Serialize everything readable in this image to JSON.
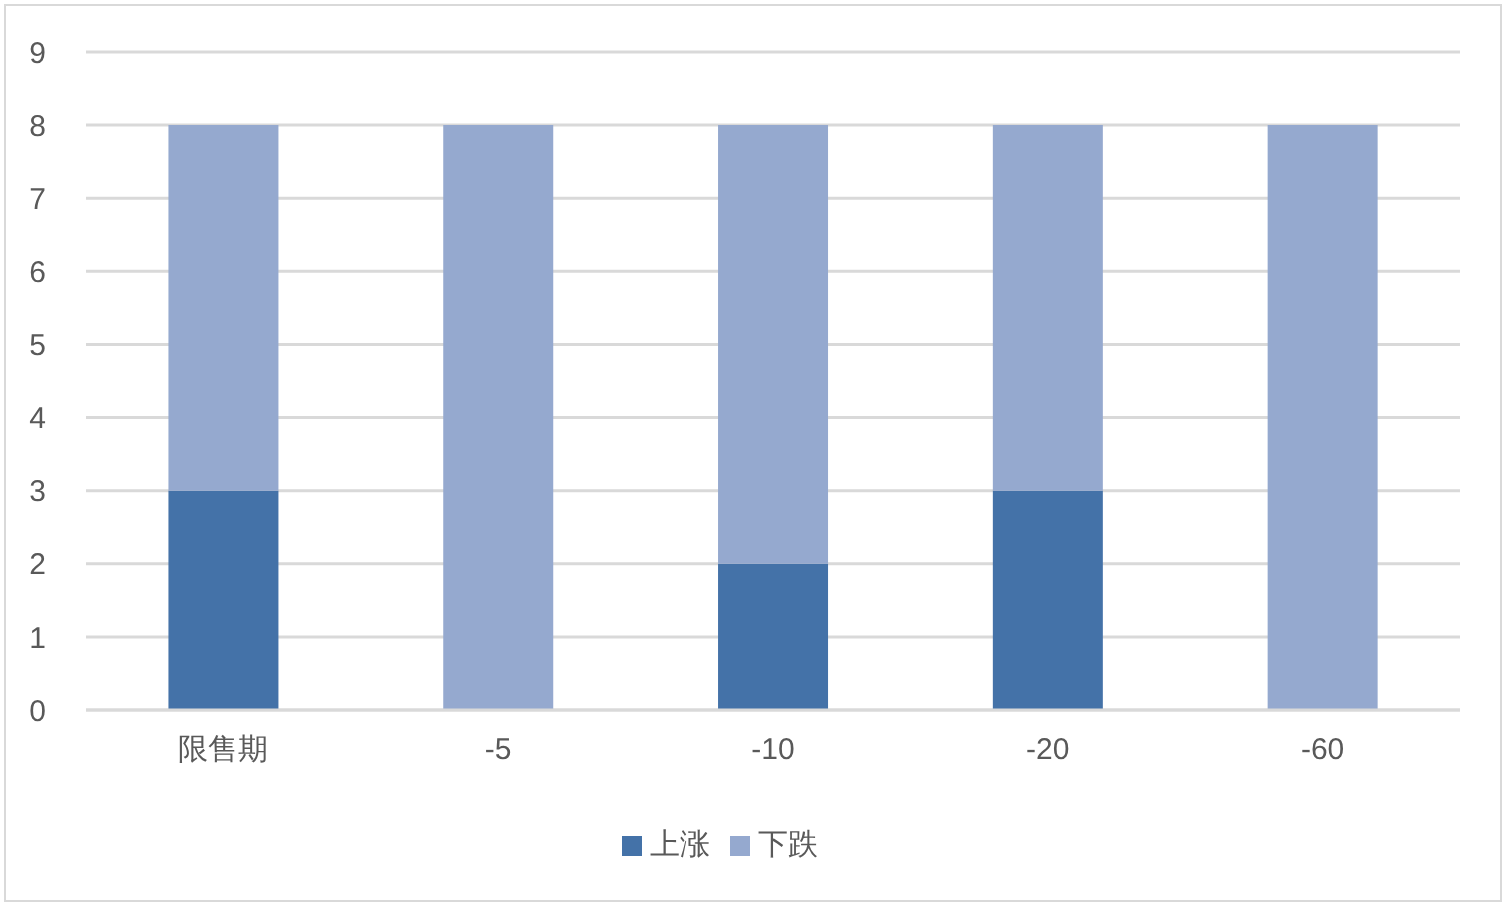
{
  "chart_data": {
    "type": "bar",
    "categories": [
      "限售期",
      "-5",
      "-10",
      "-20",
      "-60"
    ],
    "series": [
      {
        "name": "上涨",
        "color": "#4472a8",
        "values": [
          3,
          0,
          2,
          3,
          0
        ]
      },
      {
        "name": "下跌",
        "color": "#95a9cf",
        "values": [
          5,
          8,
          6,
          5,
          8
        ]
      }
    ],
    "stacked": true,
    "ylim": [
      0,
      9
    ],
    "yticks": [
      0,
      1,
      2,
      3,
      4,
      5,
      6,
      7,
      8,
      9
    ],
    "grid": "y",
    "legend": "bottom"
  }
}
